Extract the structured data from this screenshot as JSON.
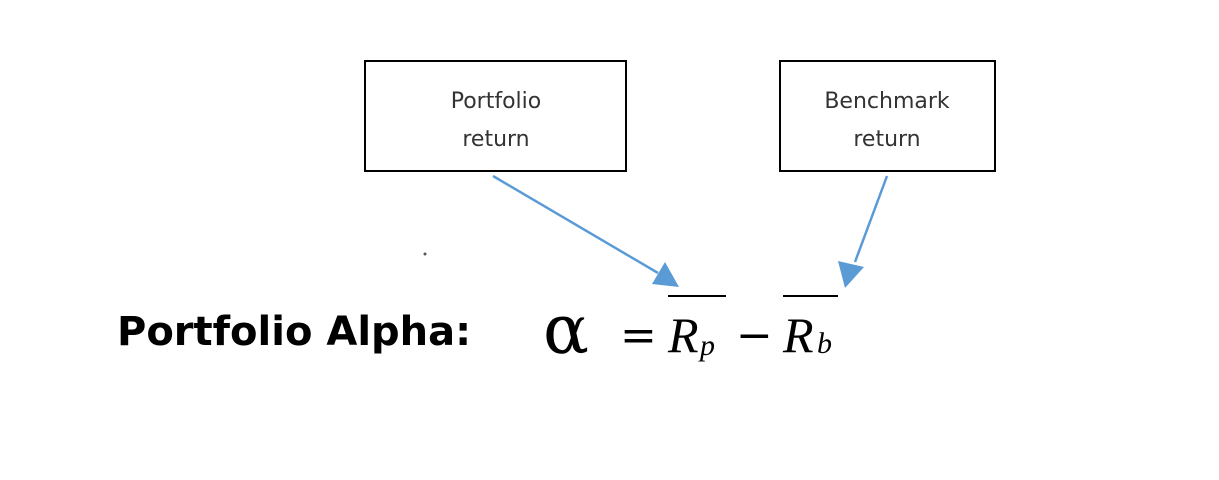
{
  "boxes": {
    "portfolio": {
      "line1": "Portfolio",
      "line2": "return"
    },
    "benchmark": {
      "line1": "Benchmark",
      "line2": "return"
    }
  },
  "formula": {
    "label": "Portfolio Alpha:",
    "alpha": "α",
    "equals": "=",
    "minus": "−",
    "rp_main": "R",
    "rp_sub": "p",
    "rb_main": "R",
    "rb_sub": "b"
  },
  "colors": {
    "arrow": "#5b9bd5",
    "box_border": "#000000",
    "text": "#000000"
  }
}
